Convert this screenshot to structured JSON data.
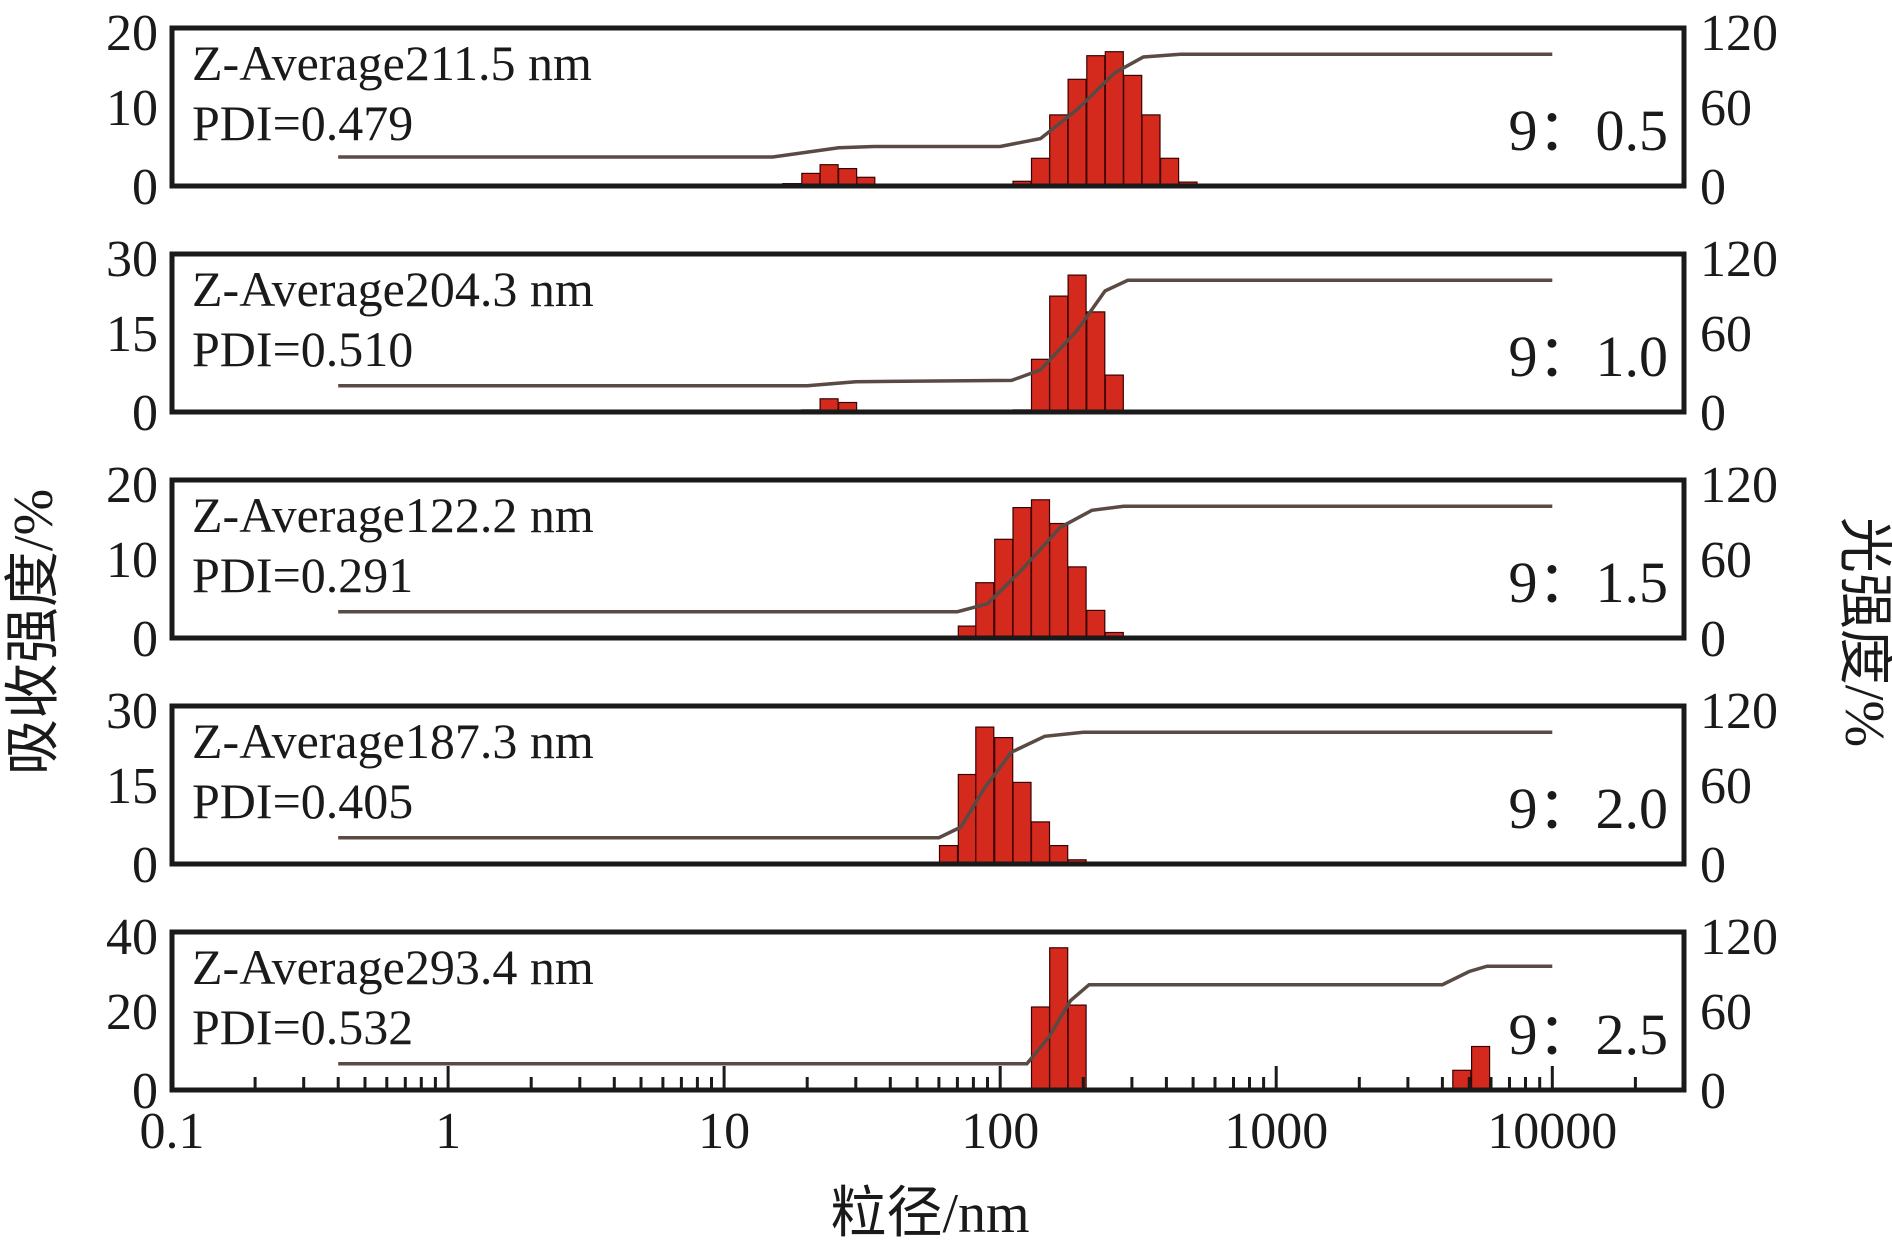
{
  "chart_data": {
    "type": "bar",
    "xlabel": "粒径/nm",
    "ylabel_left": "吸收强度/%",
    "ylabel_right": "光强度/%",
    "x_scale": "log",
    "xlim": [
      0.1,
      30000
    ],
    "x_ticks": [
      "0.1",
      "1",
      "10",
      "100",
      "1000",
      "10000"
    ],
    "colors": {
      "bars": "#d42a1e",
      "curve": "#5a4a44",
      "frame": "#1a1a1a"
    },
    "panels": [
      {
        "z_average_label": "Z-Average211.5 nm",
        "pdi_label": "PDI=0.479",
        "ratio_label": "9：0.5",
        "left_ticks": [
          "20",
          "10",
          "0"
        ],
        "right_ticks": [
          "120",
          "60",
          "0"
        ],
        "ylim_left": [
          0,
          20
        ],
        "ylim_right": [
          0,
          120
        ],
        "bars": [
          {
            "x": 17.6,
            "y": 0.3
          },
          {
            "x": 20.6,
            "y": 1.6
          },
          {
            "x": 24.0,
            "y": 2.7
          },
          {
            "x": 28.0,
            "y": 2.2
          },
          {
            "x": 32.6,
            "y": 1.1
          },
          {
            "x": 120,
            "y": 0.6
          },
          {
            "x": 140,
            "y": 3.5
          },
          {
            "x": 163,
            "y": 9.0
          },
          {
            "x": 190,
            "y": 13.5
          },
          {
            "x": 222,
            "y": 16.5
          },
          {
            "x": 259,
            "y": 17.0
          },
          {
            "x": 302,
            "y": 14.0
          },
          {
            "x": 352,
            "y": 9.0
          },
          {
            "x": 411,
            "y": 3.5
          },
          {
            "x": 479,
            "y": 0.5
          }
        ],
        "cumulative": [
          {
            "x": 0.4,
            "y": 22
          },
          {
            "x": 15,
            "y": 22
          },
          {
            "x": 26,
            "y": 29
          },
          {
            "x": 35,
            "y": 30
          },
          {
            "x": 100,
            "y": 30
          },
          {
            "x": 140,
            "y": 36
          },
          {
            "x": 190,
            "y": 58
          },
          {
            "x": 260,
            "y": 86
          },
          {
            "x": 330,
            "y": 98
          },
          {
            "x": 450,
            "y": 100
          },
          {
            "x": 10000,
            "y": 100
          }
        ]
      },
      {
        "z_average_label": "Z-Average204.3 nm",
        "pdi_label": "PDI=0.510",
        "ratio_label": "9：1.0",
        "left_ticks": [
          "30",
          "15",
          "0"
        ],
        "right_ticks": [
          "120",
          "60",
          "0"
        ],
        "ylim_left": [
          0,
          30
        ],
        "ylim_right": [
          0,
          120
        ],
        "bars": [
          {
            "x": 20.6,
            "y": 0.4
          },
          {
            "x": 24.0,
            "y": 2.5
          },
          {
            "x": 28.0,
            "y": 1.8
          },
          {
            "x": 120,
            "y": 0.4
          },
          {
            "x": 140,
            "y": 10.0
          },
          {
            "x": 163,
            "y": 22.0
          },
          {
            "x": 190,
            "y": 26.0
          },
          {
            "x": 222,
            "y": 19.0
          },
          {
            "x": 259,
            "y": 7.0
          }
        ],
        "cumulative": [
          {
            "x": 0.4,
            "y": 20
          },
          {
            "x": 20,
            "y": 20
          },
          {
            "x": 30,
            "y": 23
          },
          {
            "x": 110,
            "y": 24
          },
          {
            "x": 140,
            "y": 32
          },
          {
            "x": 190,
            "y": 62
          },
          {
            "x": 240,
            "y": 92
          },
          {
            "x": 290,
            "y": 100
          },
          {
            "x": 10000,
            "y": 100
          }
        ]
      },
      {
        "z_average_label": "Z-Average122.2 nm",
        "pdi_label": "PDI=0.291",
        "ratio_label": "9：1.5",
        "left_ticks": [
          "20",
          "10",
          "0"
        ],
        "right_ticks": [
          "120",
          "60",
          "0"
        ],
        "ylim_left": [
          0,
          20
        ],
        "ylim_right": [
          0,
          120
        ],
        "bars": [
          {
            "x": 76,
            "y": 1.5
          },
          {
            "x": 88,
            "y": 7.0
          },
          {
            "x": 103,
            "y": 12.5
          },
          {
            "x": 120,
            "y": 16.5
          },
          {
            "x": 140,
            "y": 17.5
          },
          {
            "x": 163,
            "y": 14.5
          },
          {
            "x": 190,
            "y": 9.0
          },
          {
            "x": 222,
            "y": 3.5
          },
          {
            "x": 259,
            "y": 0.7
          }
        ],
        "cumulative": [
          {
            "x": 0.4,
            "y": 20
          },
          {
            "x": 70,
            "y": 20
          },
          {
            "x": 90,
            "y": 26
          },
          {
            "x": 120,
            "y": 52
          },
          {
            "x": 165,
            "y": 84
          },
          {
            "x": 215,
            "y": 97
          },
          {
            "x": 280,
            "y": 100
          },
          {
            "x": 10000,
            "y": 100
          }
        ]
      },
      {
        "z_average_label": "Z-Average187.3 nm",
        "pdi_label": "PDI=0.405",
        "ratio_label": "9：2.0",
        "left_ticks": [
          "30",
          "15",
          "0"
        ],
        "right_ticks": [
          "120",
          "60",
          "0"
        ],
        "ylim_left": [
          0,
          30
        ],
        "ylim_right": [
          0,
          120
        ],
        "bars": [
          {
            "x": 65,
            "y": 3.5
          },
          {
            "x": 76,
            "y": 17.0
          },
          {
            "x": 88,
            "y": 26.0
          },
          {
            "x": 103,
            "y": 24.0
          },
          {
            "x": 120,
            "y": 15.5
          },
          {
            "x": 140,
            "y": 8.0
          },
          {
            "x": 163,
            "y": 3.5
          },
          {
            "x": 190,
            "y": 0.8
          }
        ],
        "cumulative": [
          {
            "x": 0.4,
            "y": 20
          },
          {
            "x": 60,
            "y": 20
          },
          {
            "x": 72,
            "y": 28
          },
          {
            "x": 88,
            "y": 58
          },
          {
            "x": 110,
            "y": 85
          },
          {
            "x": 145,
            "y": 97
          },
          {
            "x": 200,
            "y": 100
          },
          {
            "x": 10000,
            "y": 100
          }
        ]
      },
      {
        "z_average_label": "Z-Average293.4 nm",
        "pdi_label": "PDI=0.532",
        "ratio_label": "9：2.5",
        "left_ticks": [
          "40",
          "20",
          "0"
        ],
        "right_ticks": [
          "120",
          "60",
          "0"
        ],
        "ylim_left": [
          0,
          40
        ],
        "ylim_right": [
          0,
          120
        ],
        "bars": [
          {
            "x": 140,
            "y": 21.0
          },
          {
            "x": 163,
            "y": 36.0
          },
          {
            "x": 190,
            "y": 21.5
          },
          {
            "x": 4700,
            "y": 5.0
          },
          {
            "x": 5500,
            "y": 11.0
          }
        ],
        "cumulative": [
          {
            "x": 0.4,
            "y": 20
          },
          {
            "x": 125,
            "y": 20
          },
          {
            "x": 150,
            "y": 40
          },
          {
            "x": 180,
            "y": 68
          },
          {
            "x": 210,
            "y": 80
          },
          {
            "x": 4000,
            "y": 80
          },
          {
            "x": 5000,
            "y": 90
          },
          {
            "x": 5800,
            "y": 94
          },
          {
            "x": 10000,
            "y": 94
          }
        ]
      }
    ]
  }
}
